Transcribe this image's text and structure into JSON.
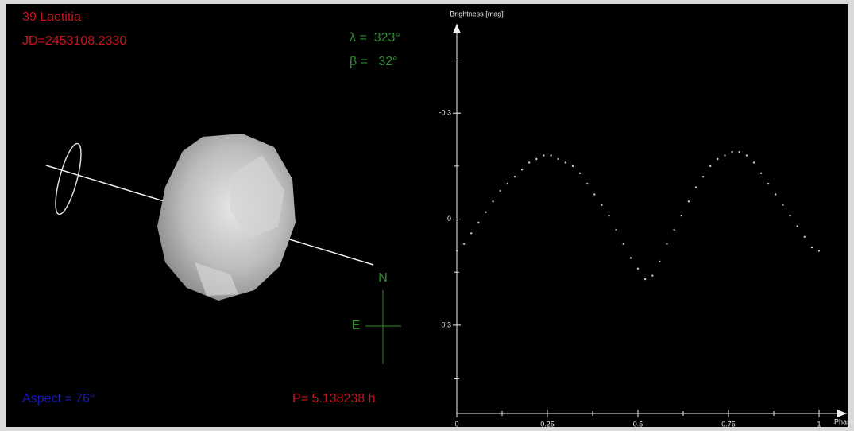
{
  "panel": {
    "object_name": "39 Laetitia",
    "julian_date": "JD=2453108.2330",
    "lambda": "λ =  323°",
    "beta": "β =   32°",
    "north": "N",
    "east": "E",
    "aspect": "Aspect = 76°",
    "period": "P= 5.138238 h"
  },
  "chart_data": {
    "type": "scatter",
    "y_label": "Brightness [mag]",
    "x_label": "Phase",
    "color": "#c8c8c8",
    "x": [
      0,
      0.02,
      0.04,
      0.06,
      0.08,
      0.1,
      0.12,
      0.14,
      0.16,
      0.18,
      0.2,
      0.22,
      0.24,
      0.26,
      0.28,
      0.3,
      0.32,
      0.34,
      0.36,
      0.38,
      0.4,
      0.42,
      0.44,
      0.46,
      0.48,
      0.5,
      0.52,
      0.54,
      0.56,
      0.58,
      0.6,
      0.62,
      0.64,
      0.66,
      0.68,
      0.7,
      0.72,
      0.74,
      0.76,
      0.78,
      0.8,
      0.82,
      0.84,
      0.86,
      0.88,
      0.9,
      0.92,
      0.94,
      0.96,
      0.98,
      1
    ],
    "values": [
      0.09,
      0.07,
      0.04,
      0.01,
      -0.02,
      -0.05,
      -0.08,
      -0.1,
      -0.12,
      -0.14,
      -0.16,
      -0.17,
      -0.18,
      -0.18,
      -0.17,
      -0.16,
      -0.15,
      -0.13,
      -0.1,
      -0.07,
      -0.04,
      -0.01,
      0.03,
      0.07,
      0.11,
      0.14,
      0.17,
      0.16,
      0.12,
      0.07,
      0.03,
      -0.01,
      -0.05,
      -0.09,
      -0.12,
      -0.15,
      -0.17,
      -0.18,
      -0.19,
      -0.19,
      -0.18,
      -0.16,
      -0.13,
      -0.1,
      -0.07,
      -0.04,
      -0.01,
      0.02,
      0.05,
      0.08,
      0.09
    ],
    "xlim": [
      0,
      1.08
    ],
    "ylim": [
      -0.53,
      0.55
    ],
    "xticks": [
      0,
      0.25,
      0.5,
      0.75,
      1
    ],
    "xminorticks": [
      0.125,
      0.375,
      0.625,
      0.875
    ],
    "yticks": [
      -0.3,
      0,
      0.3
    ],
    "yminorticks": [
      -0.45,
      -0.15,
      0.15,
      0.45
    ]
  }
}
